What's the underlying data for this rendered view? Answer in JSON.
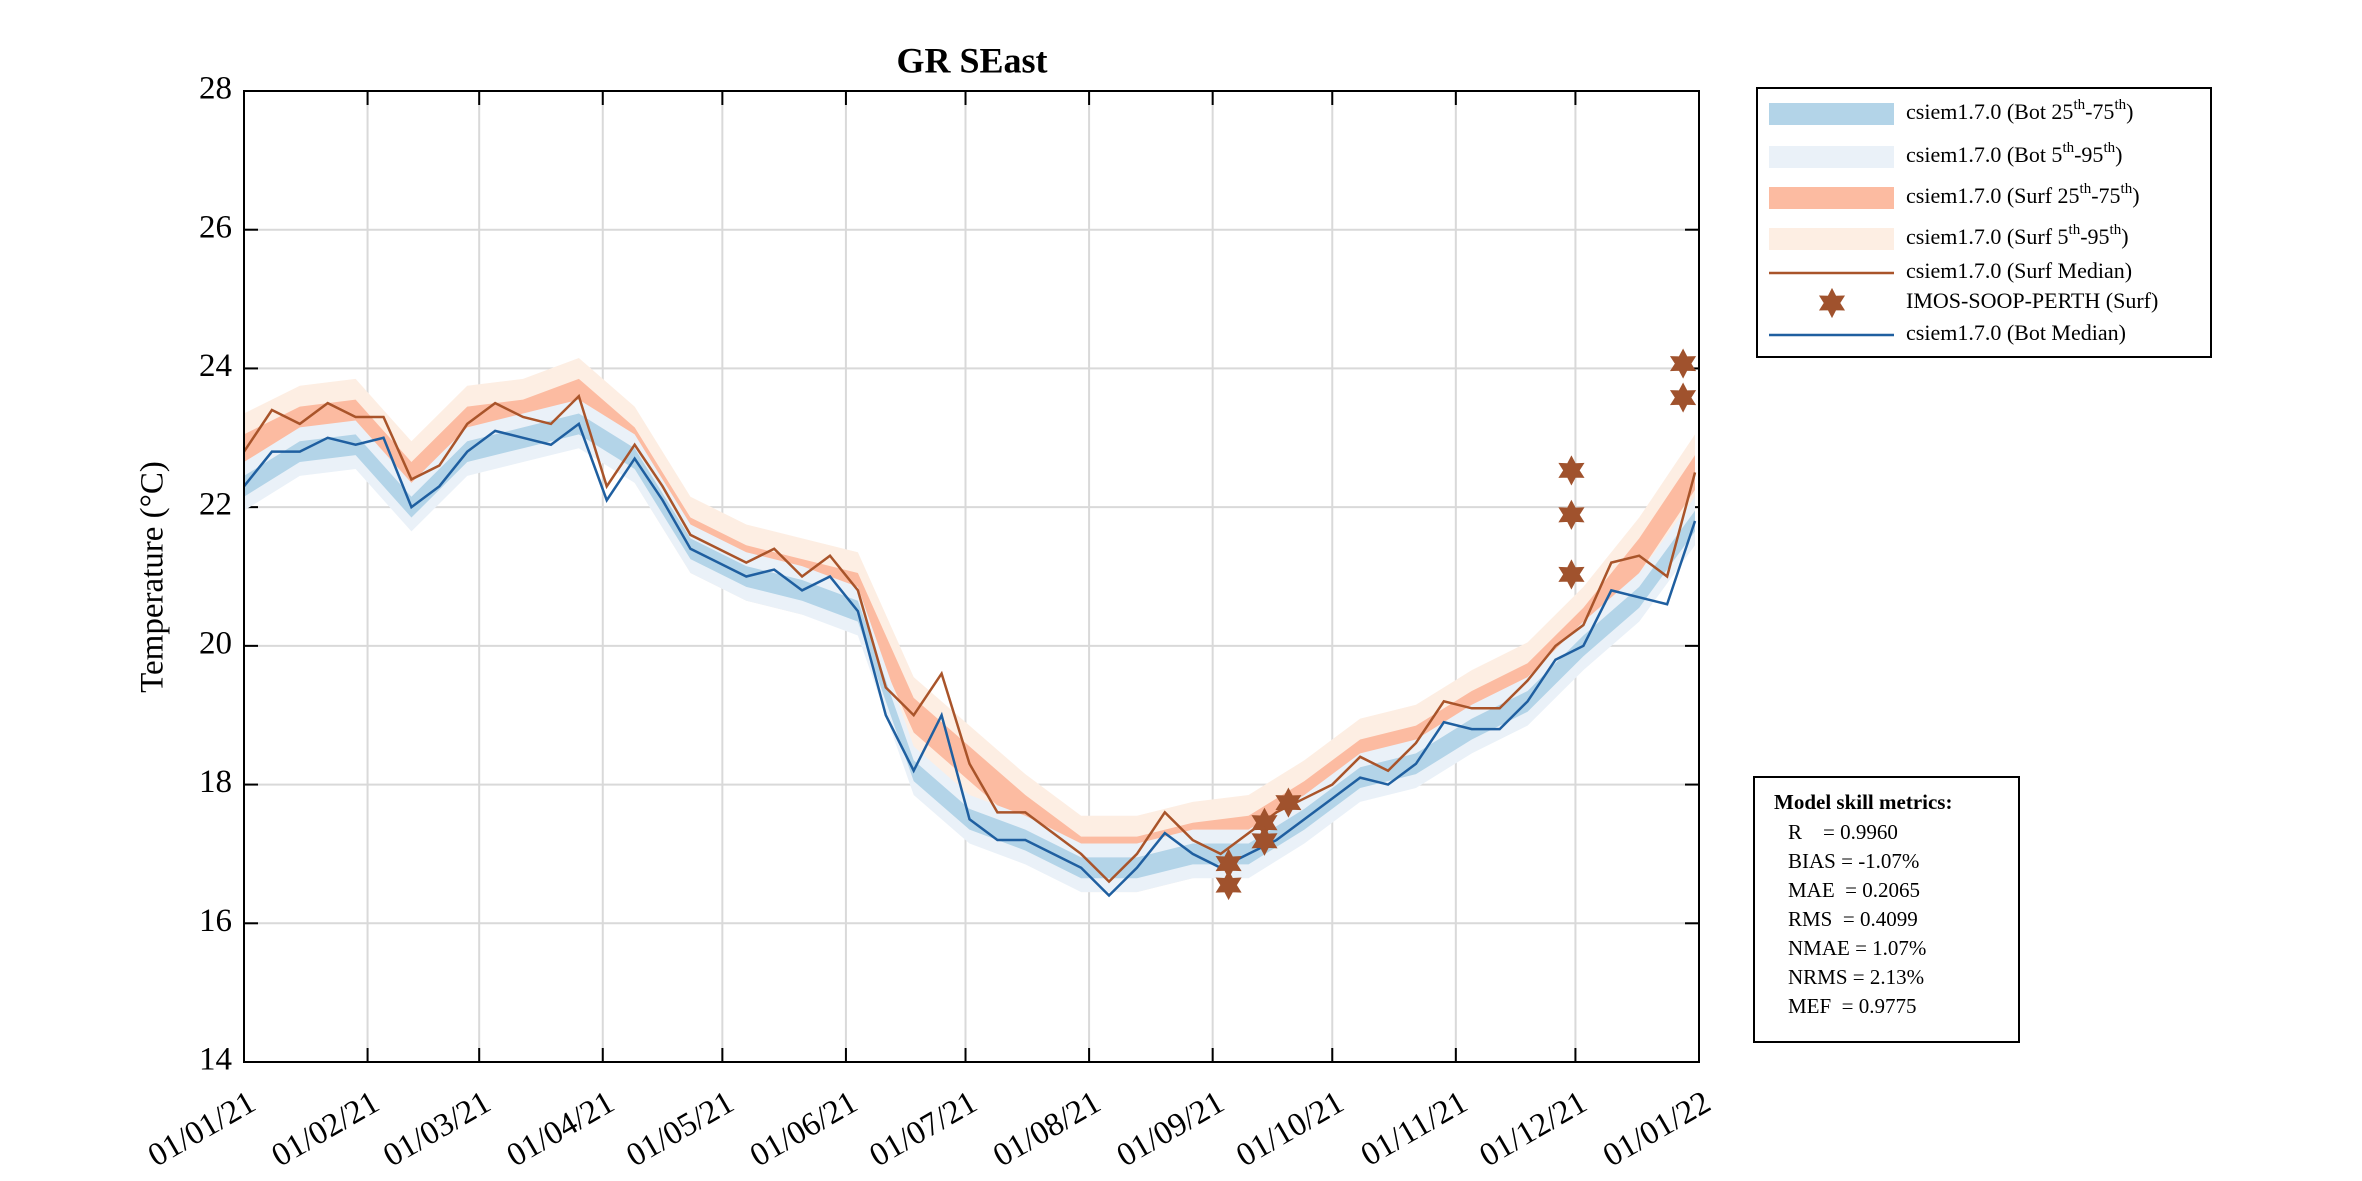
{
  "chart_data": {
    "type": "line",
    "title": "GR SEast",
    "ylabel": "Temperature (°C)",
    "xlim": [
      "2021-01-01",
      "2022-01-01"
    ],
    "xticks": [
      {
        "value": "2021-01-01",
        "label": "01/01/21"
      },
      {
        "value": "2021-02-01",
        "label": "01/02/21"
      },
      {
        "value": "2021-03-01",
        "label": "01/03/21"
      },
      {
        "value": "2021-04-01",
        "label": "01/04/21"
      },
      {
        "value": "2021-05-01",
        "label": "01/05/21"
      },
      {
        "value": "2021-06-01",
        "label": "01/06/21"
      },
      {
        "value": "2021-07-01",
        "label": "01/07/21"
      },
      {
        "value": "2021-08-01",
        "label": "01/08/21"
      },
      {
        "value": "2021-09-01",
        "label": "01/09/21"
      },
      {
        "value": "2021-10-01",
        "label": "01/10/21"
      },
      {
        "value": "2021-11-01",
        "label": "01/11/21"
      },
      {
        "value": "2021-12-01",
        "label": "01/12/21"
      },
      {
        "value": "2022-01-01",
        "label": "01/01/22"
      }
    ],
    "ylim": [
      14,
      28
    ],
    "yticks": [
      14,
      16,
      18,
      20,
      22,
      24,
      26,
      28
    ],
    "grid": true,
    "series": [
      {
        "name": "csiem1.7.0 (Bot 25th-75th)",
        "color": "#b3d4e8",
        "x": [
          "2021-01-01",
          "2021-01-15",
          "2021-01-29",
          "2021-02-12",
          "2021-02-26",
          "2021-03-12",
          "2021-03-26",
          "2021-04-09",
          "2021-04-23",
          "2021-05-07",
          "2021-05-21",
          "2021-06-04",
          "2021-06-18",
          "2021-07-02",
          "2021-07-16",
          "2021-07-30",
          "2021-08-13",
          "2021-08-27",
          "2021-09-10",
          "2021-09-24",
          "2021-10-08",
          "2021-10-22",
          "2021-11-05",
          "2021-11-19",
          "2021-12-03",
          "2021-12-17",
          "2021-12-31"
        ],
        "lower": [
          22.15,
          22.65,
          22.75,
          21.85,
          22.65,
          22.85,
          23.05,
          22.55,
          21.25,
          20.85,
          20.65,
          20.35,
          18.05,
          17.35,
          17.05,
          16.65,
          16.65,
          16.85,
          16.85,
          17.35,
          17.95,
          18.15,
          18.65,
          19.05,
          19.85,
          20.55,
          21.65
        ],
        "upper": [
          22.45,
          22.95,
          23.05,
          22.15,
          22.95,
          23.15,
          23.35,
          22.85,
          21.55,
          21.15,
          20.95,
          20.65,
          18.35,
          17.65,
          17.35,
          16.95,
          16.95,
          17.15,
          17.15,
          17.65,
          18.25,
          18.45,
          18.95,
          19.35,
          20.15,
          20.85,
          21.95
        ]
      },
      {
        "name": "csiem1.7.0 (Bot 5th-95th)",
        "color": "#eaf1f8",
        "x": [
          "2021-01-01",
          "2021-01-15",
          "2021-01-29",
          "2021-02-12",
          "2021-02-26",
          "2021-03-12",
          "2021-03-26",
          "2021-04-09",
          "2021-04-23",
          "2021-05-07",
          "2021-05-21",
          "2021-06-04",
          "2021-06-18",
          "2021-07-02",
          "2021-07-16",
          "2021-07-30",
          "2021-08-13",
          "2021-08-27",
          "2021-09-10",
          "2021-09-24",
          "2021-10-08",
          "2021-10-22",
          "2021-11-05",
          "2021-11-19",
          "2021-12-03",
          "2021-12-17",
          "2021-12-31"
        ],
        "lower": [
          21.95,
          22.45,
          22.55,
          21.65,
          22.45,
          22.65,
          22.85,
          22.35,
          21.05,
          20.65,
          20.45,
          20.15,
          17.85,
          17.15,
          16.85,
          16.45,
          16.45,
          16.65,
          16.65,
          17.15,
          17.75,
          17.95,
          18.45,
          18.85,
          19.65,
          20.35,
          21.45
        ],
        "upper": [
          22.65,
          23.15,
          23.25,
          22.35,
          23.15,
          23.35,
          23.55,
          23.05,
          21.75,
          21.35,
          21.15,
          20.85,
          18.55,
          17.85,
          17.55,
          17.15,
          17.15,
          17.35,
          17.35,
          17.85,
          18.45,
          18.65,
          19.15,
          19.55,
          20.35,
          21.05,
          22.15
        ]
      },
      {
        "name": "csiem1.7.0 (Surf 25th-75th)",
        "color": "#fcbba1",
        "x": [
          "2021-01-01",
          "2021-01-15",
          "2021-01-29",
          "2021-02-12",
          "2021-02-26",
          "2021-03-12",
          "2021-03-26",
          "2021-04-09",
          "2021-04-23",
          "2021-05-07",
          "2021-05-21",
          "2021-06-04",
          "2021-06-18",
          "2021-07-02",
          "2021-07-16",
          "2021-07-30",
          "2021-08-13",
          "2021-08-27",
          "2021-09-10",
          "2021-09-24",
          "2021-10-08",
          "2021-10-22",
          "2021-11-05",
          "2021-11-19",
          "2021-12-03",
          "2021-12-17",
          "2021-12-31"
        ],
        "lower": [
          22.55,
          22.95,
          23.05,
          22.15,
          22.95,
          23.05,
          23.35,
          22.65,
          21.35,
          20.95,
          20.75,
          20.55,
          18.75,
          18.05,
          17.35,
          16.75,
          16.75,
          16.95,
          17.05,
          17.55,
          18.15,
          18.35,
          18.85,
          19.25,
          20.05,
          21.05,
          22.25
        ],
        "upper": [
          23.05,
          23.45,
          23.55,
          22.65,
          23.45,
          23.55,
          23.85,
          23.15,
          21.85,
          21.45,
          21.25,
          21.05,
          19.25,
          18.55,
          17.85,
          17.25,
          17.25,
          17.45,
          17.55,
          18.05,
          18.65,
          18.85,
          19.35,
          19.75,
          20.55,
          21.55,
          22.75
        ]
      },
      {
        "name": "csiem1.7.0 (Surf 5th-95th)",
        "color": "#fdeee3",
        "x": [
          "2021-01-01",
          "2021-01-15",
          "2021-01-29",
          "2021-02-12",
          "2021-02-26",
          "2021-03-12",
          "2021-03-26",
          "2021-04-09",
          "2021-04-23",
          "2021-05-07",
          "2021-05-21",
          "2021-06-04",
          "2021-06-18",
          "2021-07-02",
          "2021-07-16",
          "2021-07-30",
          "2021-08-13",
          "2021-08-27",
          "2021-09-10",
          "2021-09-24",
          "2021-10-08",
          "2021-10-22",
          "2021-11-05",
          "2021-11-19",
          "2021-12-03",
          "2021-12-17",
          "2021-12-31"
        ],
        "lower": [
          22.25,
          22.65,
          22.75,
          21.85,
          22.65,
          22.75,
          23.05,
          22.35,
          21.05,
          20.65,
          20.45,
          20.25,
          18.45,
          17.75,
          17.05,
          16.45,
          16.45,
          16.65,
          16.75,
          17.25,
          17.85,
          18.05,
          18.55,
          18.95,
          19.75,
          20.75,
          21.95
        ],
        "upper": [
          23.35,
          23.75,
          23.85,
          22.95,
          23.75,
          23.85,
          24.15,
          23.45,
          22.15,
          21.75,
          21.55,
          21.35,
          19.55,
          18.85,
          18.15,
          17.55,
          17.55,
          17.75,
          17.85,
          18.35,
          18.95,
          19.15,
          19.65,
          20.05,
          20.85,
          21.85,
          23.05
        ]
      },
      {
        "name": "csiem1.7.0 (Surf Median)",
        "color": "#a9542a",
        "x": [
          "2021-01-01",
          "2021-01-08",
          "2021-01-15",
          "2021-01-22",
          "2021-01-29",
          "2021-02-05",
          "2021-02-12",
          "2021-02-19",
          "2021-02-26",
          "2021-03-05",
          "2021-03-12",
          "2021-03-19",
          "2021-03-26",
          "2021-04-02",
          "2021-04-09",
          "2021-04-16",
          "2021-04-23",
          "2021-04-30",
          "2021-05-07",
          "2021-05-14",
          "2021-05-21",
          "2021-05-28",
          "2021-06-04",
          "2021-06-11",
          "2021-06-18",
          "2021-06-25",
          "2021-07-02",
          "2021-07-09",
          "2021-07-16",
          "2021-07-23",
          "2021-07-30",
          "2021-08-06",
          "2021-08-13",
          "2021-08-20",
          "2021-08-27",
          "2021-09-03",
          "2021-09-10",
          "2021-09-17",
          "2021-09-24",
          "2021-10-01",
          "2021-10-08",
          "2021-10-15",
          "2021-10-22",
          "2021-10-29",
          "2021-11-05",
          "2021-11-12",
          "2021-11-19",
          "2021-11-26",
          "2021-12-03",
          "2021-12-10",
          "2021-12-17",
          "2021-12-24",
          "2021-12-31"
        ],
        "values": [
          22.8,
          23.4,
          23.2,
          23.5,
          23.3,
          23.3,
          22.4,
          22.6,
          23.2,
          23.5,
          23.3,
          23.2,
          23.6,
          22.3,
          22.9,
          22.3,
          21.6,
          21.4,
          21.2,
          21.4,
          21.0,
          21.3,
          20.8,
          19.4,
          19.0,
          19.6,
          18.3,
          17.6,
          17.6,
          17.3,
          17.0,
          16.6,
          17.0,
          17.6,
          17.2,
          17.0,
          17.3,
          17.6,
          17.8,
          18.0,
          18.4,
          18.2,
          18.6,
          19.2,
          19.1,
          19.1,
          19.5,
          20.0,
          20.3,
          21.2,
          21.3,
          21.0,
          22.5
        ]
      },
      {
        "name": "IMOS-SOOP-PERTH (Surf)",
        "color": "#a0522d",
        "marker": "hexagram",
        "x": [
          "2021-09-05",
          "2021-09-05",
          "2021-09-14",
          "2021-09-14",
          "2021-09-20",
          "2021-11-30",
          "2021-11-30",
          "2021-11-30",
          "2021-12-28",
          "2021-12-28"
        ],
        "values": [
          16.86,
          16.55,
          17.45,
          17.19,
          17.74,
          22.53,
          21.89,
          21.03,
          24.07,
          23.58
        ]
      },
      {
        "name": "csiem1.7.0 (Bot Median)",
        "color": "#1f5fa0",
        "x": [
          "2021-01-01",
          "2021-01-08",
          "2021-01-15",
          "2021-01-22",
          "2021-01-29",
          "2021-02-05",
          "2021-02-12",
          "2021-02-19",
          "2021-02-26",
          "2021-03-05",
          "2021-03-12",
          "2021-03-19",
          "2021-03-26",
          "2021-04-02",
          "2021-04-09",
          "2021-04-16",
          "2021-04-23",
          "2021-04-30",
          "2021-05-07",
          "2021-05-14",
          "2021-05-21",
          "2021-05-28",
          "2021-06-04",
          "2021-06-11",
          "2021-06-18",
          "2021-06-25",
          "2021-07-02",
          "2021-07-09",
          "2021-07-16",
          "2021-07-23",
          "2021-07-30",
          "2021-08-06",
          "2021-08-13",
          "2021-08-20",
          "2021-08-27",
          "2021-09-03",
          "2021-09-10",
          "2021-09-17",
          "2021-09-24",
          "2021-10-01",
          "2021-10-08",
          "2021-10-15",
          "2021-10-22",
          "2021-10-29",
          "2021-11-05",
          "2021-11-12",
          "2021-11-19",
          "2021-11-26",
          "2021-12-03",
          "2021-12-10",
          "2021-12-17",
          "2021-12-24",
          "2021-12-31"
        ],
        "values": [
          22.3,
          22.8,
          22.8,
          23.0,
          22.9,
          23.0,
          22.0,
          22.3,
          22.8,
          23.1,
          23.0,
          22.9,
          23.2,
          22.1,
          22.7,
          22.1,
          21.4,
          21.2,
          21.0,
          21.1,
          20.8,
          21.0,
          20.5,
          19.0,
          18.2,
          19.0,
          17.5,
          17.2,
          17.2,
          17.0,
          16.8,
          16.4,
          16.8,
          17.3,
          17.0,
          16.8,
          17.0,
          17.2,
          17.5,
          17.8,
          18.1,
          18.0,
          18.3,
          18.9,
          18.8,
          18.8,
          19.2,
          19.8,
          20.0,
          20.8,
          20.7,
          20.6,
          21.8
        ]
      }
    ],
    "stats": {
      "title": "Model skill metrics:",
      "lines": [
        "R    = 0.9960",
        "BIAS = -1.07%",
        "MAE  = 0.2065",
        "RMS  = 0.4099",
        "NMAE = 1.07%",
        "NRMS = 2.13%",
        "MEF  = 0.9775"
      ]
    }
  }
}
